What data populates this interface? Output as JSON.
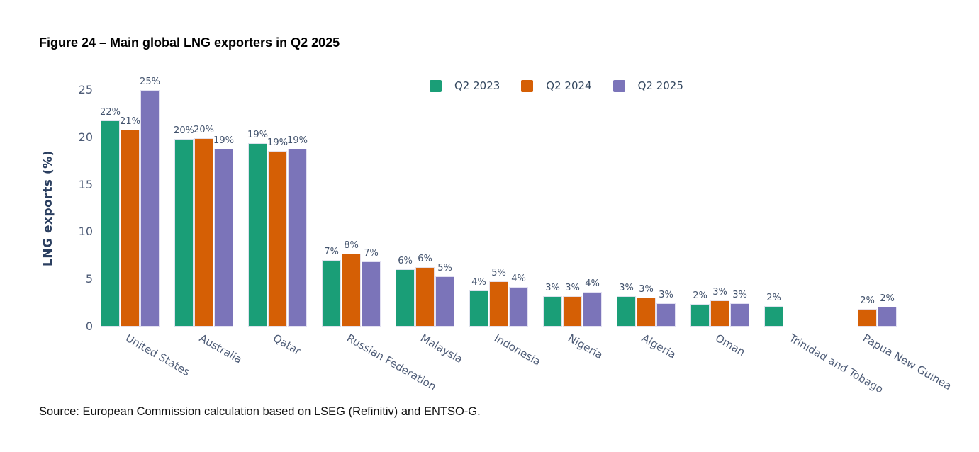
{
  "figure": {
    "title": "Figure 24 – Main global LNG exporters in Q2 2025",
    "source": "Source: European Commission calculation based on LSEG (Refinitiv) and ENTSO-G."
  },
  "chart_data": {
    "type": "bar",
    "title": "Figure 24 – Main global LNG exporters in Q2 2025",
    "xlabel": "",
    "ylabel": "LNG exports (%)",
    "ylim": [
      0,
      26
    ],
    "yticks": [
      0,
      5,
      10,
      15,
      20,
      25
    ],
    "grid": false,
    "legend_position": "top-center-inside",
    "categories": [
      "United States",
      "Australia",
      "Qatar",
      "Russian Federation",
      "Malaysia",
      "Indonesia",
      "Nigeria",
      "Algeria",
      "Oman",
      "Trinidad and Tobago",
      "Papua New Guinea"
    ],
    "series": [
      {
        "name": "Q2 2023",
        "color": "#1a9e77",
        "values": [
          21.8,
          19.8,
          19.4,
          7.0,
          6.1,
          3.8,
          3.2,
          3.2,
          2.4,
          2.2,
          null
        ],
        "labels": [
          "22%",
          "20%",
          "19%",
          "7%",
          "6%",
          "4%",
          "3%",
          "3%",
          "2%",
          "2%",
          null
        ]
      },
      {
        "name": "Q2 2024",
        "color": "#d55f05",
        "values": [
          20.8,
          19.9,
          18.6,
          7.7,
          6.3,
          4.8,
          3.2,
          3.1,
          2.8,
          null,
          1.9
        ],
        "labels": [
          "21%",
          "20%",
          "19%",
          "8%",
          "6%",
          "5%",
          "3%",
          "3%",
          "3%",
          null,
          "2%"
        ]
      },
      {
        "name": "Q2 2025",
        "color": "#7b74b9",
        "values": [
          25.0,
          18.8,
          18.8,
          6.9,
          5.3,
          4.2,
          3.7,
          2.5,
          2.5,
          null,
          2.1
        ],
        "labels": [
          "25%",
          "19%",
          "19%",
          "7%",
          "5%",
          "4%",
          "4%",
          "3%",
          "3%",
          null,
          "2%"
        ]
      }
    ]
  }
}
